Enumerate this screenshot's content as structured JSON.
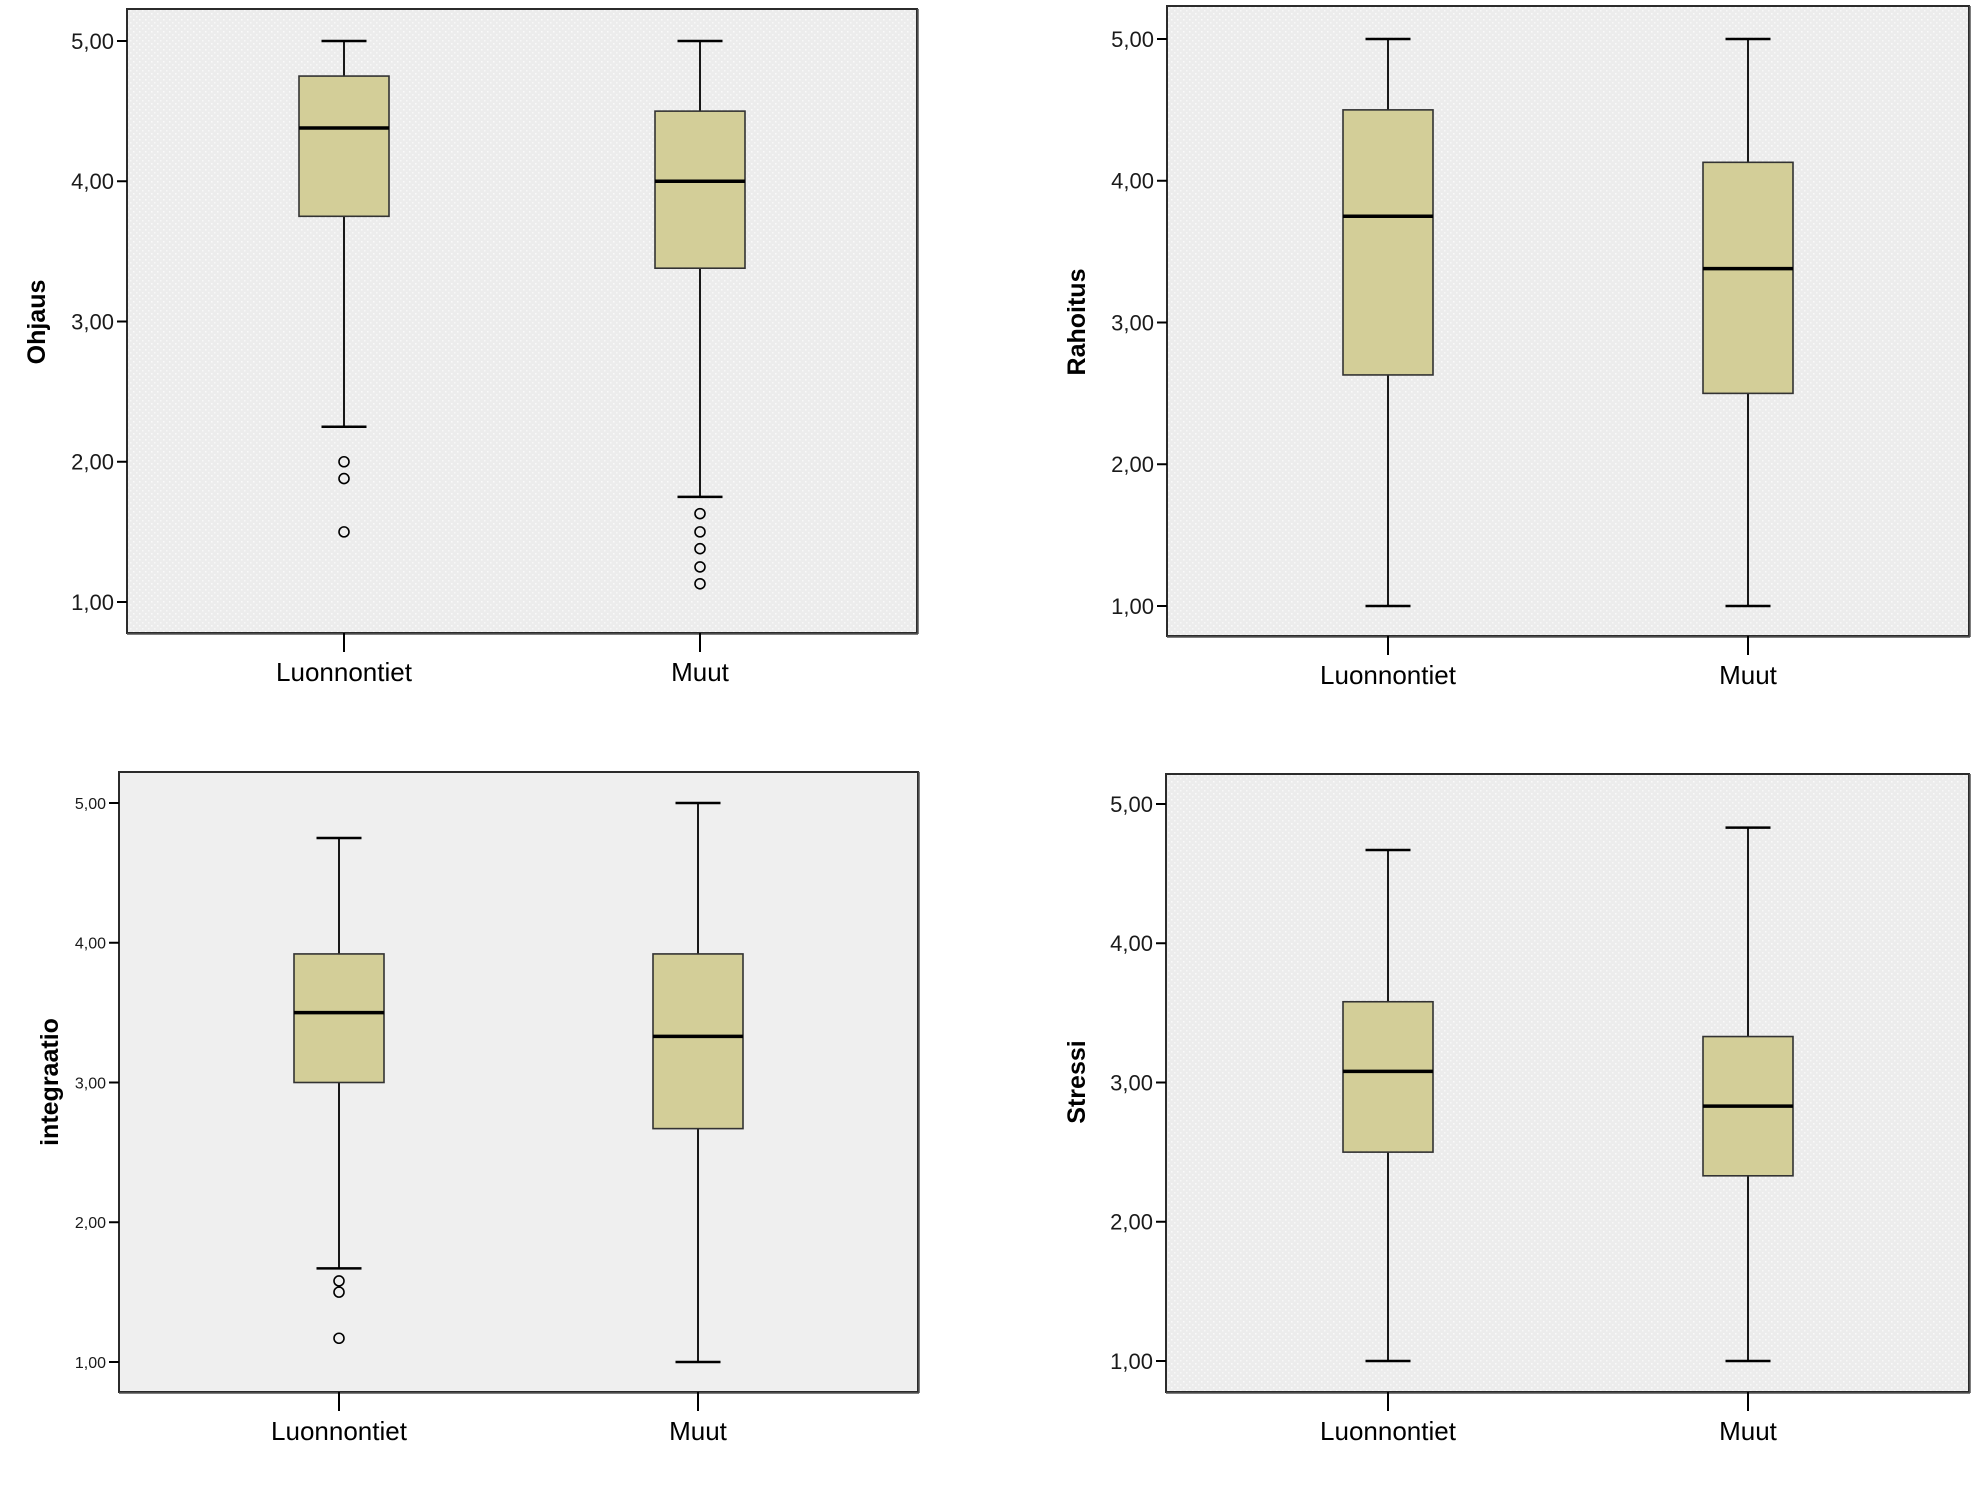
{
  "chart_data": [
    {
      "type": "boxplot",
      "panel": "top-left",
      "title": "",
      "xlabel": "",
      "ylabel": "Ohjaus",
      "ylim": [
        1,
        5
      ],
      "yticks": [
        "1,00",
        "2,00",
        "3,00",
        "4,00",
        "5,00"
      ],
      "ytick_values": [
        1,
        2,
        3,
        4,
        5
      ],
      "background": "dotted",
      "categories": [
        "Luonnontiet",
        "Muut"
      ],
      "series": [
        {
          "name": "Luonnontiet",
          "min": 2.25,
          "q1": 3.75,
          "median": 4.38,
          "q3": 4.75,
          "max": 5.0,
          "outliers": [
            2.0,
            1.88,
            1.5
          ]
        },
        {
          "name": "Muut",
          "min": 1.75,
          "q1": 3.38,
          "median": 4.0,
          "q3": 4.5,
          "max": 5.0,
          "outliers": [
            1.63,
            1.5,
            1.38,
            1.25,
            1.13
          ]
        }
      ]
    },
    {
      "type": "boxplot",
      "panel": "top-right",
      "title": "",
      "xlabel": "",
      "ylabel": "Rahoitus",
      "ylim": [
        1,
        5
      ],
      "yticks": [
        "1,00",
        "2,00",
        "3,00",
        "4,00",
        "5,00"
      ],
      "ytick_values": [
        1,
        2,
        3,
        4,
        5
      ],
      "background": "dotted",
      "categories": [
        "Luonnontiet",
        "Muut"
      ],
      "series": [
        {
          "name": "Luonnontiet",
          "min": 1.0,
          "q1": 2.63,
          "median": 3.75,
          "q3": 4.5,
          "max": 5.0,
          "outliers": []
        },
        {
          "name": "Muut",
          "min": 1.0,
          "q1": 2.5,
          "median": 3.38,
          "q3": 4.13,
          "max": 5.0,
          "outliers": []
        }
      ]
    },
    {
      "type": "boxplot",
      "panel": "bottom-left",
      "title": "",
      "xlabel": "",
      "ylabel": "integraatio",
      "ylim": [
        1,
        5
      ],
      "yticks": [
        "1,00",
        "2,00",
        "3,00",
        "4,00",
        "5,00"
      ],
      "ytick_values": [
        1,
        2,
        3,
        4,
        5
      ],
      "background": "plain",
      "categories": [
        "Luonnontiet",
        "Muut"
      ],
      "series": [
        {
          "name": "Luonnontiet",
          "min": 1.67,
          "q1": 3.0,
          "median": 3.5,
          "q3": 3.92,
          "max": 4.75,
          "outliers": [
            1.58,
            1.5,
            1.17
          ]
        },
        {
          "name": "Muut",
          "min": 1.0,
          "q1": 2.67,
          "median": 3.33,
          "q3": 3.92,
          "max": 5.0,
          "outliers": []
        }
      ]
    },
    {
      "type": "boxplot",
      "panel": "bottom-right",
      "title": "",
      "xlabel": "",
      "ylabel": "Stressi",
      "ylim": [
        1,
        5
      ],
      "yticks": [
        "1,00",
        "2,00",
        "3,00",
        "4,00",
        "5,00"
      ],
      "ytick_values": [
        1,
        2,
        3,
        4,
        5
      ],
      "background": "dotted",
      "categories": [
        "Luonnontiet",
        "Muut"
      ],
      "series": [
        {
          "name": "Luonnontiet",
          "min": 1.0,
          "q1": 2.5,
          "median": 3.08,
          "q3": 3.58,
          "max": 4.67,
          "outliers": []
        },
        {
          "name": "Muut",
          "min": 1.0,
          "q1": 2.33,
          "median": 2.83,
          "q3": 3.33,
          "max": 4.83,
          "outliers": []
        }
      ]
    }
  ],
  "colors": {
    "box_fill": "#d3ce98",
    "plot_background": "#efefef",
    "page_background": "#ffffff",
    "line": "#000000"
  }
}
